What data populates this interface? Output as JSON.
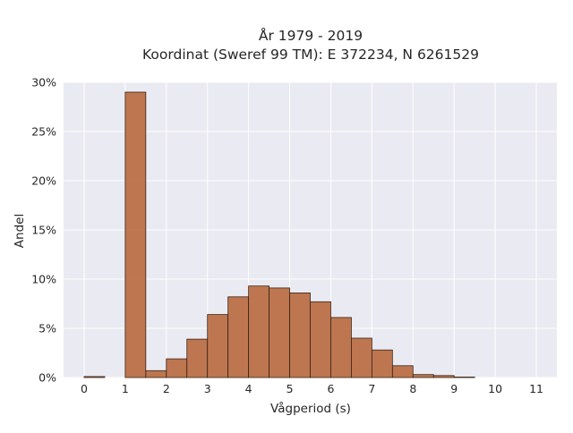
{
  "chart_data": {
    "type": "bar",
    "title_lines": [
      "År 1979 - 2019",
      "Koordinat (Sweref 99 TM): E 372234, N 6261529"
    ],
    "xlabel": "Vågperiod (s)",
    "ylabel": "Andel",
    "xlim": [
      -0.5,
      11.5
    ],
    "ylim": [
      0,
      30
    ],
    "x_ticks": [
      0,
      1,
      2,
      3,
      4,
      5,
      6,
      7,
      8,
      9,
      10,
      11
    ],
    "x_tick_labels": [
      "0",
      "1",
      "2",
      "3",
      "4",
      "5",
      "6",
      "7",
      "8",
      "9",
      "10",
      "11"
    ],
    "y_ticks": [
      0,
      5,
      10,
      15,
      20,
      25,
      30
    ],
    "y_tick_labels": [
      "0%",
      "5%",
      "10%",
      "15%",
      "20%",
      "25%",
      "30%"
    ],
    "bin_width": 0.5,
    "bins": [
      {
        "x0": 0.0,
        "value": 0.1
      },
      {
        "x0": 1.0,
        "value": 29.0
      },
      {
        "x0": 1.5,
        "value": 0.7
      },
      {
        "x0": 2.0,
        "value": 1.9
      },
      {
        "x0": 2.5,
        "value": 3.9
      },
      {
        "x0": 3.0,
        "value": 6.4
      },
      {
        "x0": 3.5,
        "value": 8.2
      },
      {
        "x0": 4.0,
        "value": 9.3
      },
      {
        "x0": 4.5,
        "value": 9.1
      },
      {
        "x0": 5.0,
        "value": 8.6
      },
      {
        "x0": 5.5,
        "value": 7.7
      },
      {
        "x0": 6.0,
        "value": 6.1
      },
      {
        "x0": 6.5,
        "value": 4.0
      },
      {
        "x0": 7.0,
        "value": 2.8
      },
      {
        "x0": 7.5,
        "value": 1.2
      },
      {
        "x0": 8.0,
        "value": 0.3
      },
      {
        "x0": 8.5,
        "value": 0.2
      },
      {
        "x0": 9.0,
        "value": 0.05
      }
    ],
    "grid": true,
    "colors": {
      "bar_fill": "#b8693d",
      "bar_stroke": "#3a2418",
      "plot_background": "#eaeaf2",
      "grid": "#ffffff"
    }
  }
}
